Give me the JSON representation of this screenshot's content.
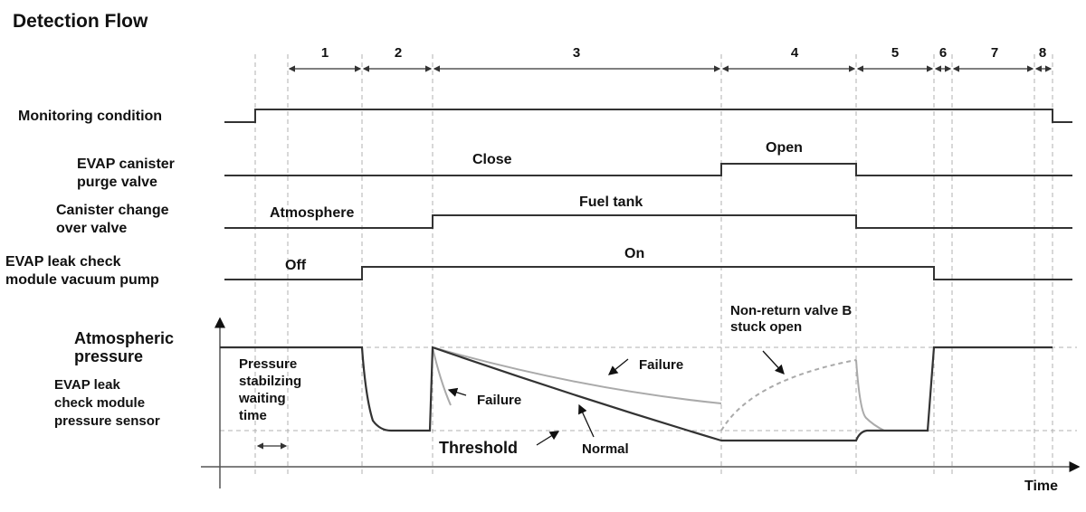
{
  "title": "Detection Flow",
  "phases": [
    "1",
    "2",
    "3",
    "4",
    "5",
    "6",
    "7",
    "8"
  ],
  "signals": {
    "monitoring": {
      "label": "Monitoring condition"
    },
    "purge": {
      "label1": "EVAP canister",
      "label2": "purge valve",
      "state_close": "Close",
      "state_open": "Open"
    },
    "changeover": {
      "label1": "Canister change",
      "label2": "over valve",
      "state_atm": "Atmosphere",
      "state_fuel": "Fuel tank"
    },
    "pump": {
      "label1": "EVAP leak check",
      "label2": "module vacuum pump",
      "state_off": "Off",
      "state_on": "On"
    }
  },
  "pressure": {
    "atm_label1": "Atmospheric",
    "atm_label2": "pressure",
    "sensor_label1": "EVAP leak",
    "sensor_label2": "check module",
    "sensor_label3": "pressure sensor",
    "wait_label1": "Pressure",
    "wait_label2": "stabilzing",
    "wait_label3": "waiting",
    "wait_label4": "time",
    "failure1": "Failure",
    "failure2": "Failure",
    "threshold": "Threshold",
    "normal": "Normal",
    "nonreturn1": "Non-return valve B",
    "nonreturn2": "stuck open",
    "time_label": "Time"
  },
  "colors": {
    "line": "#333333",
    "failure": "#aaaaaa",
    "grid": "#b0b0b0"
  }
}
